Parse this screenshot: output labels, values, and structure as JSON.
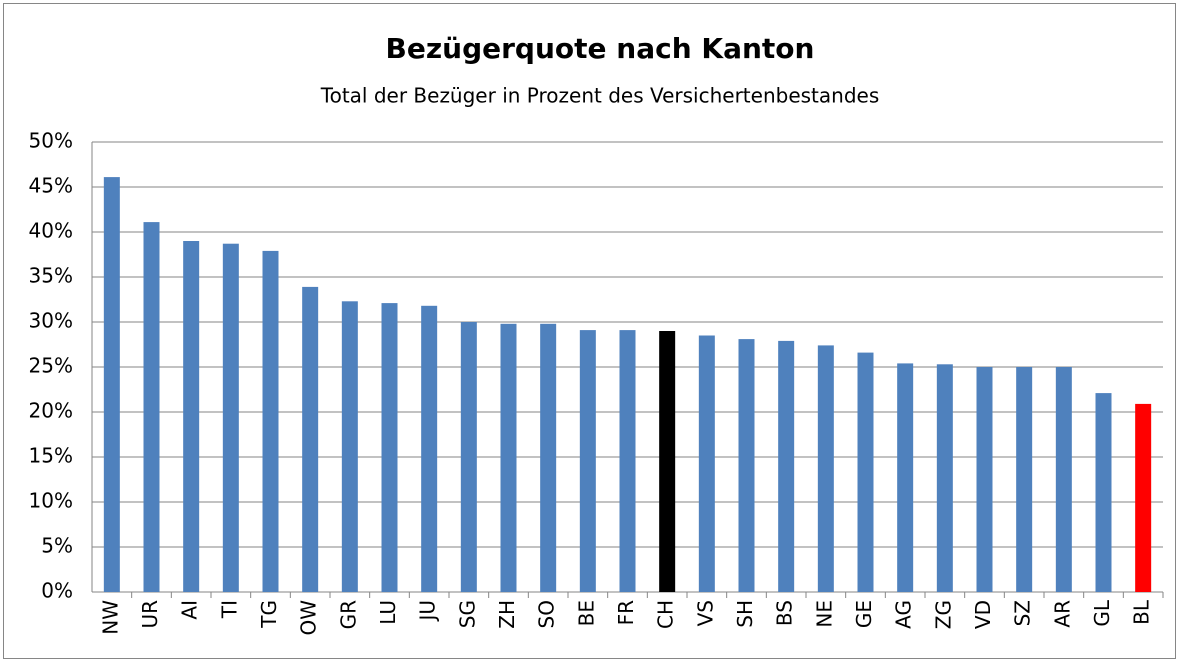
{
  "chart_data": {
    "type": "bar",
    "title": "Bezügerquote nach Kanton",
    "subtitle": "Total der Bezüger in Prozent des Versichertenbestandes",
    "categories": [
      "NW",
      "UR",
      "AI",
      "TI",
      "TG",
      "OW",
      "GR",
      "LU",
      "JU",
      "SG",
      "ZH",
      "SO",
      "BE",
      "FR",
      "CH",
      "VS",
      "SH",
      "BS",
      "NE",
      "GE",
      "AG",
      "ZG",
      "VD",
      "SZ",
      "AR",
      "GL",
      "BL"
    ],
    "values": [
      46.1,
      41.1,
      39.0,
      38.7,
      37.9,
      33.9,
      32.3,
      32.1,
      31.8,
      30.0,
      29.8,
      29.8,
      29.1,
      29.1,
      29.0,
      28.5,
      28.1,
      27.9,
      27.4,
      26.6,
      25.4,
      25.3,
      25.0,
      25.0,
      25.0,
      22.1,
      20.9
    ],
    "colors": [
      "#4f81bd",
      "#4f81bd",
      "#4f81bd",
      "#4f81bd",
      "#4f81bd",
      "#4f81bd",
      "#4f81bd",
      "#4f81bd",
      "#4f81bd",
      "#4f81bd",
      "#4f81bd",
      "#4f81bd",
      "#4f81bd",
      "#4f81bd",
      "#000000",
      "#4f81bd",
      "#4f81bd",
      "#4f81bd",
      "#4f81bd",
      "#4f81bd",
      "#4f81bd",
      "#4f81bd",
      "#4f81bd",
      "#4f81bd",
      "#4f81bd",
      "#4f81bd",
      "#ff0000"
    ],
    "ylim": [
      0,
      50
    ],
    "yticks": [
      {
        "value": 0,
        "label": "0%"
      },
      {
        "value": 5,
        "label": "5%"
      },
      {
        "value": 10,
        "label": "10%"
      },
      {
        "value": 15,
        "label": "15%"
      },
      {
        "value": 20,
        "label": "20%"
      },
      {
        "value": 25,
        "label": "25%"
      },
      {
        "value": 30,
        "label": "30%"
      },
      {
        "value": 35,
        "label": "35%"
      },
      {
        "value": 40,
        "label": "40%"
      },
      {
        "value": 45,
        "label": "45%"
      },
      {
        "value": 50,
        "label": "50%"
      }
    ],
    "grid": true
  }
}
